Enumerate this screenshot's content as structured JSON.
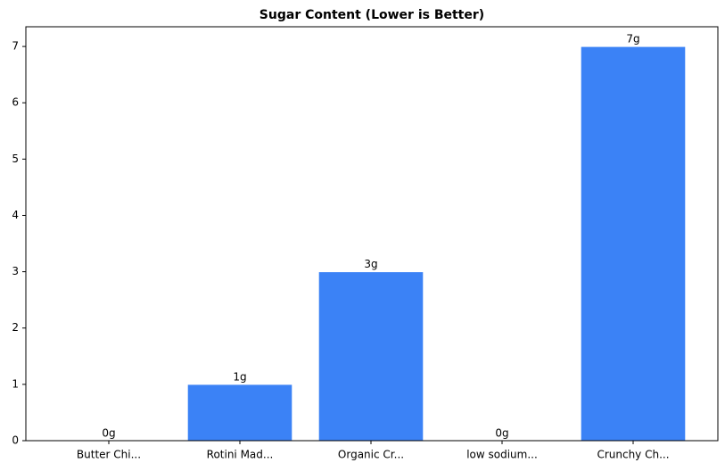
{
  "chart_data": {
    "type": "bar",
    "title": "Sugar Content (Lower is Better)",
    "categories": [
      "Butter Chi...",
      "Rotini Mad...",
      "Organic Cr...",
      "low sodium...",
      "Crunchy Ch..."
    ],
    "values": [
      0,
      1,
      3,
      0,
      7
    ],
    "value_labels": [
      "0g",
      "1g",
      "3g",
      "0g",
      "7g"
    ],
    "color": "#3b82f6",
    "ylim": [
      0,
      7.35
    ],
    "yticks": [
      0,
      1,
      2,
      3,
      4,
      5,
      6,
      7
    ],
    "grid": false
  }
}
